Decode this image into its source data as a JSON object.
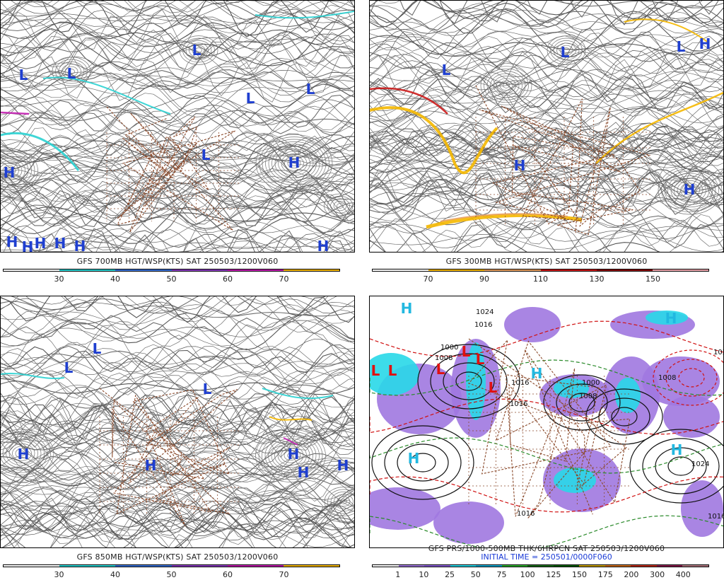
{
  "panels": [
    {
      "id": "p700",
      "title": "GFS 700MB HGT/WSP(KTS) SAT 250503/1200V060",
      "subtitle": "",
      "colorbar": {
        "colors": [
          "#ffffff",
          "#2ad2d2",
          "#3a72d8",
          "#8a3dc0",
          "#c21eb0",
          "#f5b800"
        ],
        "ticks": [
          "30",
          "40",
          "50",
          "60",
          "70"
        ]
      },
      "markers": [
        {
          "t": "L",
          "c": "#1f3fd0"
        },
        {
          "t": "L",
          "c": "#1f3fd0"
        },
        {
          "t": "L",
          "c": "#1f3fd0"
        },
        {
          "t": "L",
          "c": "#1f3fd0"
        },
        {
          "t": "L",
          "c": "#1f3fd0"
        },
        {
          "t": "L",
          "c": "#1f3fd0"
        },
        {
          "t": "H",
          "c": "#1f3fd0"
        },
        {
          "t": "H",
          "c": "#1f3fd0"
        },
        {
          "t": "H",
          "c": "#1f3fd0"
        },
        {
          "t": "H",
          "c": "#1f3fd0"
        },
        {
          "t": "H",
          "c": "#1f3fd0"
        },
        {
          "t": "H",
          "c": "#1f3fd0"
        },
        {
          "t": "H",
          "c": "#1f3fd0"
        },
        {
          "t": "H",
          "c": "#1f3fd0"
        }
      ]
    },
    {
      "id": "p300",
      "title": "GFS 300MB HGT/WSP(KTS) SAT 250503/1200V060",
      "subtitle": "",
      "colorbar": {
        "colors": [
          "#ffffff",
          "#f5b800",
          "#e8a060",
          "#cc1a1a",
          "#8a1010",
          "#f0a8b0"
        ],
        "ticks": [
          "70",
          "90",
          "110",
          "130",
          "150"
        ]
      },
      "markers": [
        {
          "t": "L",
          "c": "#1f3fd0"
        },
        {
          "t": "L",
          "c": "#1f3fd0"
        },
        {
          "t": "L",
          "c": "#1f3fd0"
        },
        {
          "t": "H",
          "c": "#1f3fd0"
        },
        {
          "t": "H",
          "c": "#1f3fd0"
        },
        {
          "t": "H",
          "c": "#1f3fd0"
        }
      ]
    },
    {
      "id": "p850",
      "title": "GFS 850MB HGT/WSP(KTS) SAT 250503/1200V060",
      "subtitle": "",
      "colorbar": {
        "colors": [
          "#ffffff",
          "#2ad2d2",
          "#3a72d8",
          "#8a3dc0",
          "#c21eb0",
          "#f5b800"
        ],
        "ticks": [
          "30",
          "40",
          "50",
          "60",
          "70"
        ]
      },
      "markers": [
        {
          "t": "L",
          "c": "#1f3fd0"
        },
        {
          "t": "L",
          "c": "#1f3fd0"
        },
        {
          "t": "L",
          "c": "#1f3fd0"
        },
        {
          "t": "H",
          "c": "#1f3fd0"
        },
        {
          "t": "H",
          "c": "#1f3fd0"
        },
        {
          "t": "H",
          "c": "#1f3fd0"
        },
        {
          "t": "H",
          "c": "#1f3fd0"
        },
        {
          "t": "H",
          "c": "#1f3fd0"
        }
      ]
    },
    {
      "id": "pprs",
      "title": "GFS PRS/1000-500MB THK/6HRPCN SAT 250503/1200V060",
      "subtitle": "INITIAL TIME = 250501/0000F060",
      "colorbar": {
        "colors": [
          "#ffffff",
          "#a078e0",
          "#8a60d8",
          "#28d8e8",
          "#18a8d0",
          "#30b030",
          "#207020",
          "#106010",
          "#c8a000",
          "#d07020",
          "#c03020",
          "#8a2050",
          "#b07880"
        ],
        "ticks": [
          "1",
          "10",
          "25",
          "50",
          "75",
          "100",
          "125",
          "150",
          "175",
          "200",
          "300",
          "400"
        ]
      },
      "markers": [
        {
          "t": "L",
          "c": "#e01010"
        },
        {
          "t": "L",
          "c": "#e01010"
        },
        {
          "t": "L",
          "c": "#e01010"
        },
        {
          "t": "L",
          "c": "#e01010"
        },
        {
          "t": "L",
          "c": "#e01010"
        },
        {
          "t": "L",
          "c": "#e01010"
        },
        {
          "t": "H",
          "c": "#22b8e0"
        },
        {
          "t": "H",
          "c": "#22b8e0"
        },
        {
          "t": "H",
          "c": "#22b8e0"
        },
        {
          "t": "H",
          "c": "#22b8e0"
        },
        {
          "t": "H",
          "c": "#22b8e0"
        }
      ],
      "isobar_labels": [
        "1024",
        "1016",
        "1008",
        "1000",
        "1016",
        "1024",
        "1016",
        "1008",
        "1016",
        "1024",
        "1008",
        "1016",
        "1000"
      ]
    }
  ]
}
